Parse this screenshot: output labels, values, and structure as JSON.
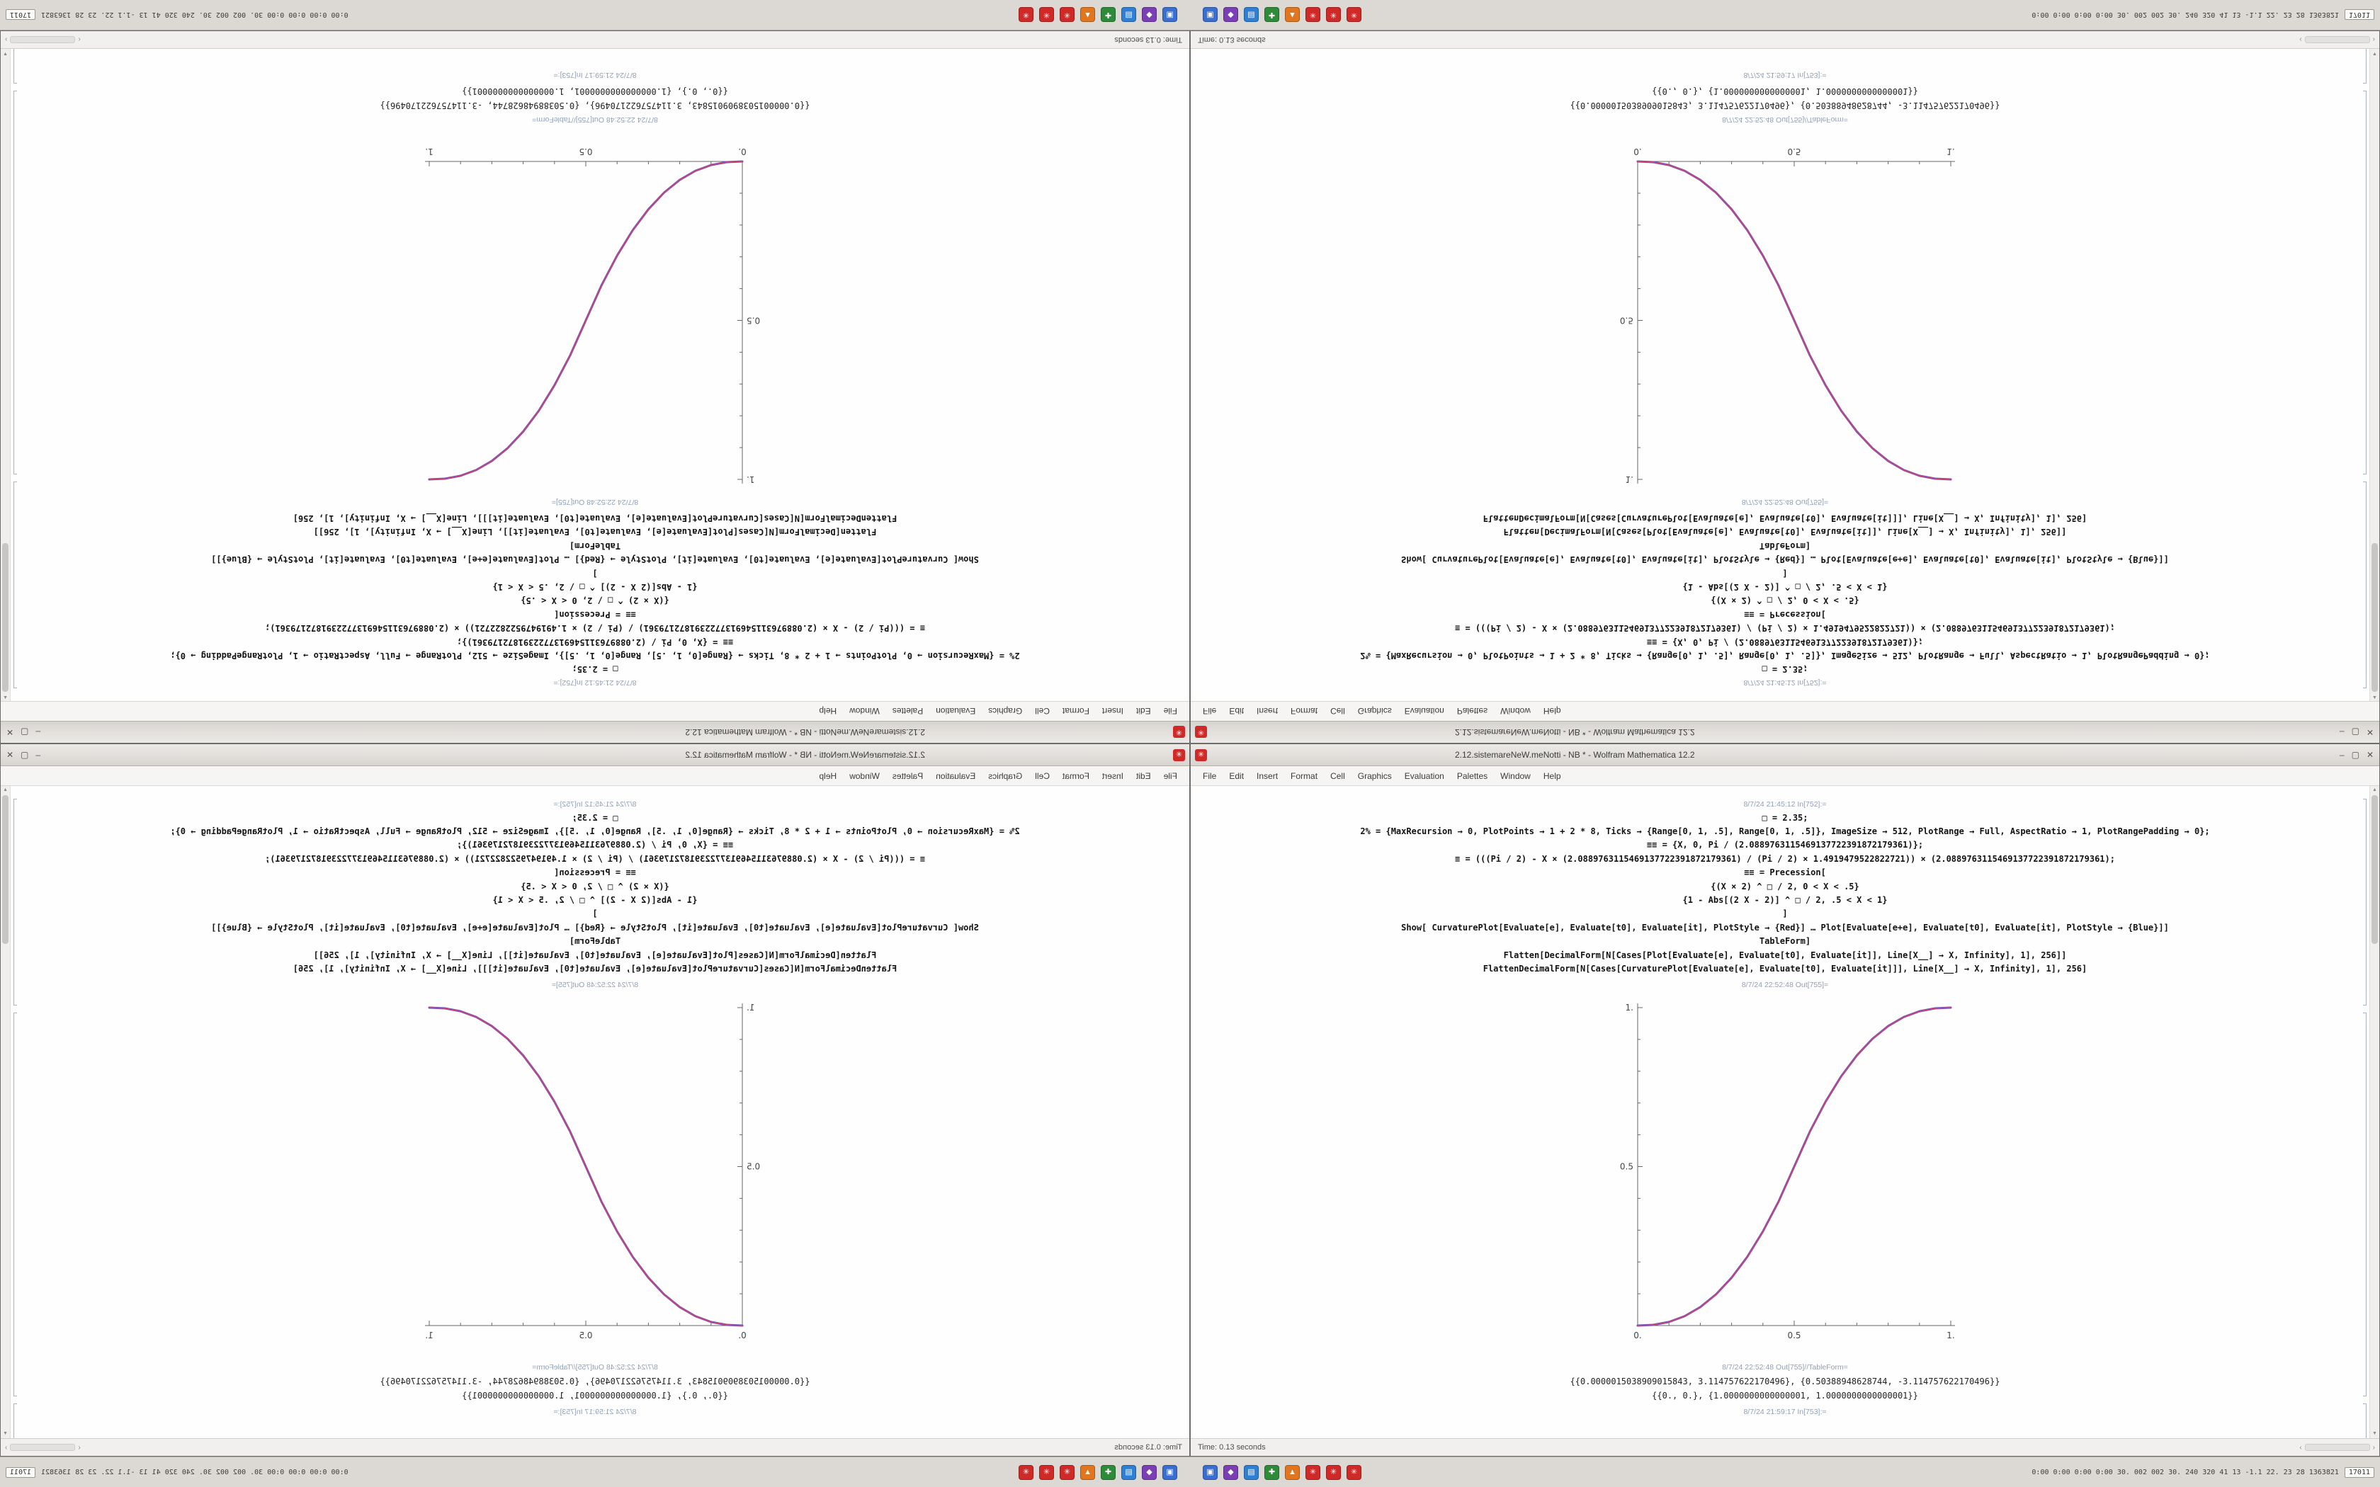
{
  "window": {
    "title": "2.12.sistemareNeW.meNotti - NB * - Wolfram Mathematica 12.2",
    "app_icon_glyph": "✳",
    "menu": [
      "File",
      "Edit",
      "Insert",
      "Format",
      "Cell",
      "Graphics",
      "Evaluation",
      "Palettes",
      "Window",
      "Help"
    ],
    "controls": {
      "minimize": "–",
      "maximize": "▢",
      "close": "✕"
    },
    "status": {
      "text": "Time: 0.13 seconds"
    },
    "notebook": {
      "cells": [
        {
          "type": "label",
          "text": "8/7/24 21:45:12 In[752]:="
        },
        {
          "type": "code",
          "text": "□ = 2.35;"
        },
        {
          "type": "code",
          "text": "2% = {MaxRecursion → 0, PlotPoints → 1 + 2 * 8, Ticks → {Range[0, 1, .5], Range[0, 1, .5]}, ImageSize → 512, PlotRange → Full, AspectRatio → 1, PlotRangePadding → 0};"
        },
        {
          "type": "code",
          "text": "≡≡ = {X, 0, Pi / (2.0889763115469137722391872179361)};"
        },
        {
          "type": "code",
          "text": "≡ = (((Pi / 2) - X × (2.0889763115469137722391872179361) / (Pi / 2) × 1.4919479522822721)) × (2.0889763115469137722391872179361);"
        },
        {
          "type": "code",
          "text": "≡≡ = Precession["
        },
        {
          "type": "code",
          "text": "{(X × 2) ^ □ / 2,  0 < X < .5}"
        },
        {
          "type": "code",
          "text": "{1 - Abs[(2 X - 2)] ^ □ / 2,  .5 < X < 1}"
        },
        {
          "type": "code",
          "text": "]"
        },
        {
          "type": "code",
          "text": "Show[  CurvaturePlot[Evaluate[e], Evaluate[t0], Evaluate[it], PlotStyle → {Red}]  …  Plot[Evaluate[e+e], Evaluate[t0], Evaluate[it],  PlotStyle → {Blue}]]"
        },
        {
          "type": "code",
          "text": "TableForm]"
        },
        {
          "type": "code",
          "text": "Flatten[DecimalForm[N[Cases[Plot[Evaluate[e], Evaluate[t0], Evaluate[it]], Line[X__] → X, Infinity], 1], 256]]"
        },
        {
          "type": "code",
          "text": "FlattenDecimalForm[N[Cases[CurvaturePlot[Evaluate[e], Evaluate[t0], Evaluate[it]]], Line[X__] → X, Infinity], 1], 256]"
        },
        {
          "type": "label",
          "text": "8/7/24 22:52:48 Out[755]="
        },
        {
          "type": "plot"
        },
        {
          "type": "label",
          "text": "8/7/24 22:52:48 Out[755]//TableForm="
        },
        {
          "type": "output",
          "text": "{{0.0000015038909015843, 3.114757622170496}, {0.50388948628744, -3.114757622170496}}"
        },
        {
          "type": "output",
          "text": "{{0., 0.}, {1.0000000000000001, 1.0000000000000001}}"
        },
        {
          "type": "label",
          "text": "8/7/24 21:59:17 In[753]:="
        }
      ]
    }
  },
  "taskbar": {
    "icons": [
      {
        "name": "app-blue-window",
        "color": "#3a6fd0",
        "glyph": "▣"
      },
      {
        "name": "app-purple",
        "color": "#7a3fb5",
        "glyph": "◆"
      },
      {
        "name": "app-blue-files",
        "color": "#2f7fd4",
        "glyph": "▤"
      },
      {
        "name": "app-green",
        "color": "#2e8b3a",
        "glyph": "✚"
      },
      {
        "name": "app-orange",
        "color": "#e0761f",
        "glyph": "▲"
      },
      {
        "name": "mathematica-doc-1",
        "color": "#cf2a27",
        "glyph": "✳"
      },
      {
        "name": "mathematica-doc-2",
        "color": "#cf2a27",
        "glyph": "✳"
      },
      {
        "name": "mathematica-doc-3",
        "color": "#cf2a27",
        "glyph": "✳"
      }
    ],
    "stats": "0:00 0:00 0:00 0:00 30. 002 002 30. 240 320 41 13 -1.1 22. 23 28 1363821",
    "chip": "17011"
  },
  "chart_data": {
    "type": "line",
    "title": "",
    "xlabel": "",
    "ylabel": "",
    "xlim": [
      0,
      1
    ],
    "ylim": [
      0,
      1
    ],
    "grid": false,
    "legend": "none",
    "frame": "left and bottom axes only",
    "xtick_positions": [
      0,
      0.5,
      1
    ],
    "xtick_labels": [
      "0.",
      "0.5",
      "1."
    ],
    "ytick_positions": [
      0.5,
      1
    ],
    "ytick_labels": [
      "0.5",
      "1."
    ],
    "x": [
      0,
      0.05,
      0.1,
      0.15,
      0.2,
      0.25,
      0.3,
      0.35,
      0.4,
      0.45,
      0.5,
      0.55,
      0.6,
      0.65,
      0.7,
      0.75,
      0.8,
      0.85,
      0.9,
      0.95,
      1
    ],
    "series": [
      {
        "name": "CurvaturePlot[Evaluate[e]] (Red)",
        "color": "#cc4477",
        "values": [
          0,
          0.0022,
          0.0114,
          0.0295,
          0.058,
          0.098,
          0.1505,
          0.216,
          0.296,
          0.39,
          0.5,
          0.61,
          0.704,
          0.784,
          0.8495,
          0.902,
          0.942,
          0.9705,
          0.9886,
          0.9978,
          1
        ]
      },
      {
        "name": "Plot[Evaluate[e+e]] (Blue)",
        "color": "#5555cc",
        "values": [
          0,
          0.0022,
          0.0114,
          0.0295,
          0.058,
          0.098,
          0.1505,
          0.216,
          0.296,
          0.39,
          0.5,
          0.61,
          0.704,
          0.784,
          0.8495,
          0.902,
          0.942,
          0.9705,
          0.9886,
          0.9978,
          1
        ]
      }
    ],
    "description": "Sigmoid smoothstep curve y=(2x)^2.35/2 for 0<x<0.5 and y=1-|2x-2|^2.35/2 for 0.5<x<1; red and blue curves overlap appearing magenta. The same notebook is shown four times: normal (bottom-right), mirrored horizontally (bottom-left), and both rotated 180° in the top half."
  }
}
